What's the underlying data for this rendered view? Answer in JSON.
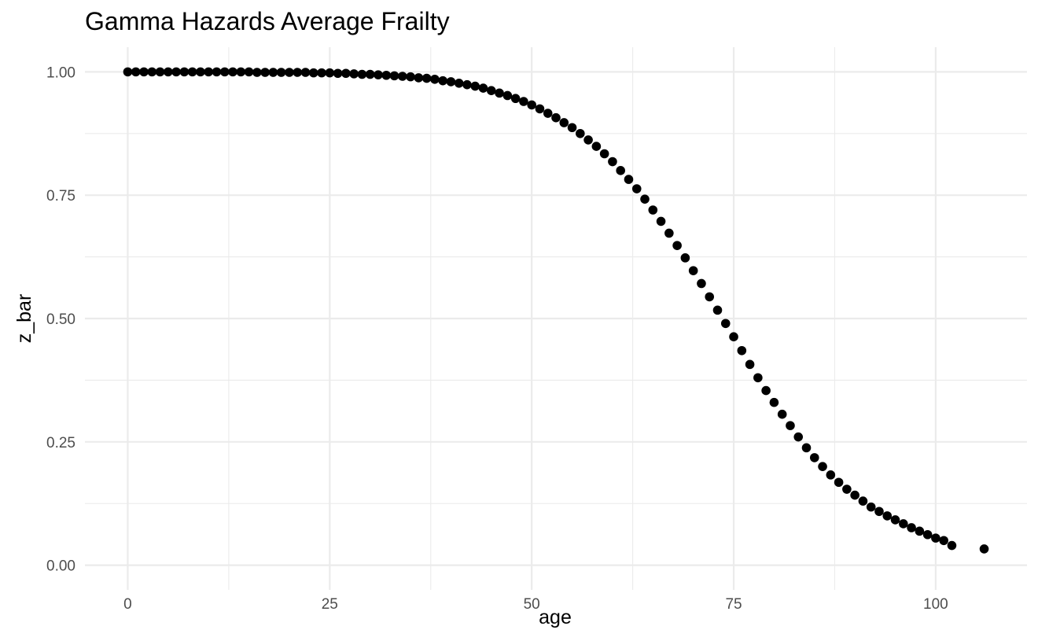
{
  "chart_data": {
    "type": "scatter",
    "title": "Gamma Hazards Average Frailty",
    "xlabel": "age",
    "ylabel": "z_bar",
    "xlim": [
      -5.3,
      111.3
    ],
    "ylim": [
      -0.05,
      1.05
    ],
    "x_ticks": [
      0,
      25,
      50,
      75,
      100
    ],
    "x_tick_labels": [
      "0",
      "25",
      "50",
      "75",
      "100"
    ],
    "x_minor_ticks": [
      12.5,
      37.5,
      62.5,
      87.5
    ],
    "y_ticks": [
      0,
      0.25,
      0.5,
      0.75,
      1
    ],
    "y_tick_labels": [
      "0.00",
      "0.25",
      "0.50",
      "0.75",
      "1.00"
    ],
    "y_minor_ticks": [
      0.125,
      0.375,
      0.625,
      0.875
    ],
    "grid": true,
    "theme": "minimal",
    "point_color": "#000000",
    "series": [
      {
        "x": [
          0,
          1,
          2,
          3,
          4,
          5,
          6,
          7,
          8,
          9,
          10,
          11,
          12,
          13,
          14,
          15,
          16,
          17,
          18,
          19,
          20,
          21,
          22,
          23,
          24,
          25,
          26,
          27,
          28,
          29,
          30,
          31,
          32,
          33,
          34,
          35,
          36,
          37,
          38,
          39,
          40,
          41,
          42,
          43,
          44,
          45,
          46,
          47,
          48,
          49,
          50,
          51,
          52,
          53,
          54,
          55,
          56,
          57,
          58,
          59,
          60,
          61,
          62,
          63,
          64,
          65,
          66,
          67,
          68,
          69,
          70,
          71,
          72,
          73,
          74,
          75,
          76,
          77,
          78,
          79,
          80,
          81,
          82,
          83,
          84,
          85,
          86,
          87,
          88,
          89,
          90,
          91,
          92,
          93,
          94,
          95,
          96,
          97,
          98,
          99,
          100,
          101,
          102,
          106
        ],
        "y": [
          1.0,
          1.0,
          1.0,
          1.0,
          1.0,
          1.0,
          1.0,
          1.0,
          1.0,
          1.0,
          1.0,
          1.0,
          1.0,
          1.0,
          1.0,
          1.0,
          0.999,
          0.999,
          0.999,
          0.999,
          0.999,
          0.999,
          0.999,
          0.998,
          0.998,
          0.998,
          0.997,
          0.997,
          0.996,
          0.995,
          0.995,
          0.994,
          0.993,
          0.992,
          0.991,
          0.99,
          0.988,
          0.987,
          0.985,
          0.982,
          0.98,
          0.977,
          0.974,
          0.971,
          0.967,
          0.962,
          0.957,
          0.952,
          0.946,
          0.94,
          0.933,
          0.925,
          0.916,
          0.907,
          0.897,
          0.887,
          0.875,
          0.862,
          0.849,
          0.834,
          0.818,
          0.8,
          0.782,
          0.763,
          0.742,
          0.72,
          0.697,
          0.673,
          0.648,
          0.623,
          0.597,
          0.571,
          0.544,
          0.517,
          0.49,
          0.463,
          0.435,
          0.407,
          0.38,
          0.354,
          0.33,
          0.306,
          0.283,
          0.26,
          0.238,
          0.218,
          0.2,
          0.183,
          0.168,
          0.154,
          0.142,
          0.13,
          0.118,
          0.109,
          0.1,
          0.092,
          0.084,
          0.076,
          0.069,
          0.062,
          0.055,
          0.05,
          0.04,
          0.033
        ]
      }
    ]
  }
}
